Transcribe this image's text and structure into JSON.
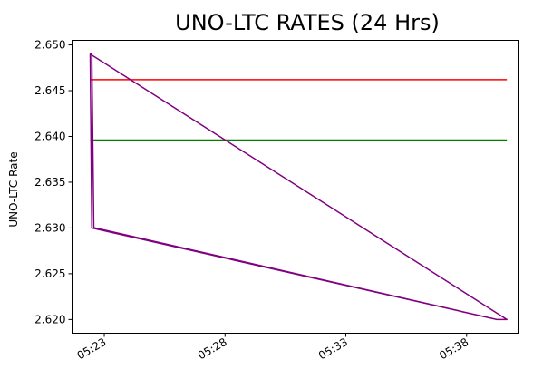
{
  "chart_data": {
    "type": "line",
    "title": "UNO-LTC RATES (24 Hrs)",
    "xlabel": "",
    "ylabel": "UNO-LTC Rate",
    "xlim": [
      "05:21:40",
      "05:40:10"
    ],
    "ylim": [
      2.6185,
      2.6505
    ],
    "x_ticks": [
      "05:23",
      "05:28",
      "05:33",
      "05:38"
    ],
    "y_ticks": [
      "2.620",
      "2.625",
      "2.630",
      "2.635",
      "2.640",
      "2.645",
      "2.650"
    ],
    "grid": false,
    "series": [
      {
        "color": "#ff0000",
        "x": [
          "05:22:25",
          "05:39:40"
        ],
        "y": [
          2.6462,
          2.6462
        ]
      },
      {
        "color": "#008000",
        "x": [
          "05:22:25",
          "05:39:40"
        ],
        "y": [
          2.6396,
          2.6396
        ]
      },
      {
        "color": "#800080",
        "x": [
          "05:22:25",
          "05:22:29",
          "05:22:34",
          "05:22:38",
          "05:39:15",
          "05:39:40",
          "05:22:25",
          "05:22:29",
          "05:39:15",
          "05:39:40"
        ],
        "y": [
          2.649,
          2.649,
          2.63,
          2.63,
          2.62,
          2.62,
          2.649,
          2.63,
          2.62,
          2.62
        ]
      }
    ]
  }
}
